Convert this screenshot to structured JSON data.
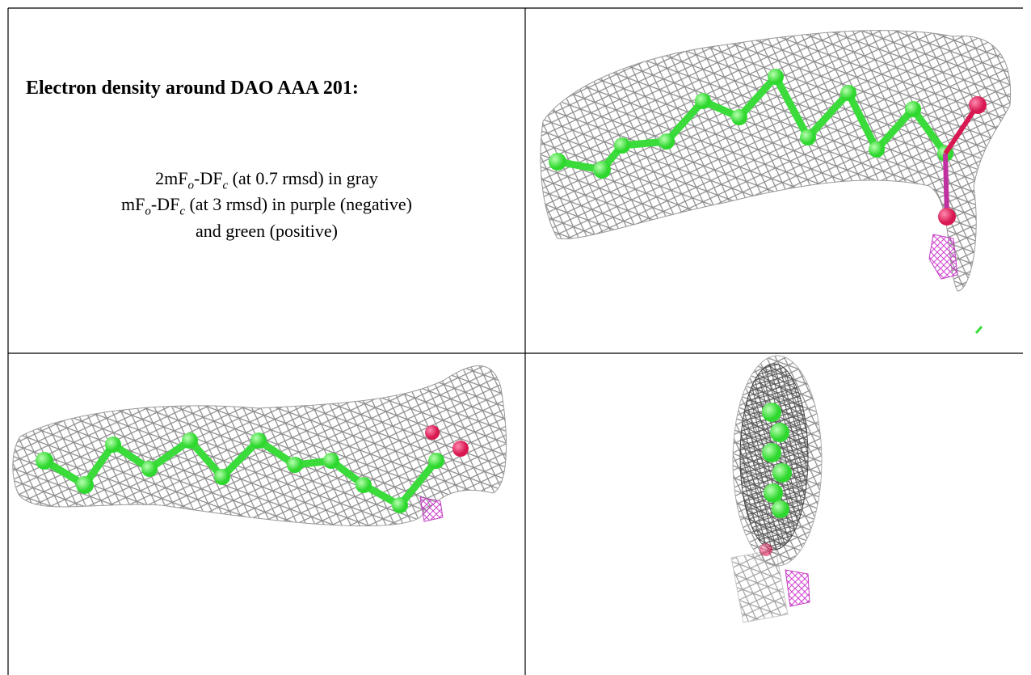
{
  "header": {
    "title": "Electron density around DAO AAA 201:"
  },
  "caption": [
    [
      "2mF",
      "o",
      "-DF",
      "c",
      " (at 0.7 rmsd) in gray"
    ],
    [
      "mF",
      "o",
      "-DF",
      "c",
      " (at 3 rmsd) in purple (negative)"
    ],
    [
      "and green (positive)"
    ]
  ]
}
